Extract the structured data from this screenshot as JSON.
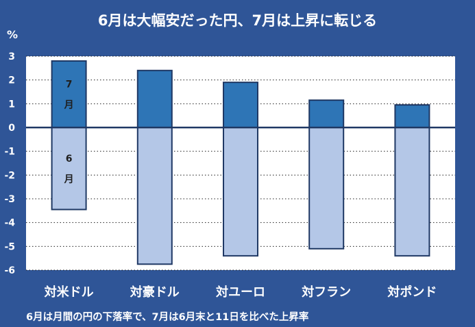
{
  "title": "6月は大幅安だった円、7月は上昇に転じる",
  "footnote": "6月は月間の円の下落率で、7月は6月末と11日を比べた上昇率",
  "colors": {
    "background": "#2f5597",
    "plot_area": "#ffffff",
    "june_bar": "#b4c7e7",
    "july_bar": "#2e75b6",
    "bar_border": "#1f3864",
    "grid": "#1f1f1f",
    "text": "#ffffff",
    "inner_label": "#1f1f1f"
  },
  "chart_data": {
    "type": "bar",
    "stacked": true,
    "ylabel": "%",
    "ylim": [
      -6,
      3
    ],
    "yticks": [
      3,
      2,
      1,
      0,
      -1,
      -2,
      -3,
      -4,
      -5,
      -6
    ],
    "ytick_labels": [
      "3",
      "2",
      "1",
      "0",
      "-1",
      "-2",
      "-3",
      "-4",
      "-5",
      "-6"
    ],
    "grid": "horizontal dotted",
    "categories": [
      "対米ドル",
      "対豪ドル",
      "対ユーロ",
      "対フラン",
      "対ポンド"
    ],
    "series": [
      {
        "name": "7月",
        "values": [
          2.8,
          2.4,
          1.9,
          1.15,
          0.95
        ]
      },
      {
        "name": "6月",
        "values": [
          -3.45,
          -5.75,
          -5.4,
          -5.1,
          -5.4
        ]
      }
    ],
    "inline_labels": [
      {
        "series": "7月",
        "category": "対米ドル",
        "lines": [
          "7",
          "月"
        ]
      },
      {
        "series": "6月",
        "category": "対米ドル",
        "lines": [
          "6",
          "月"
        ]
      }
    ]
  }
}
